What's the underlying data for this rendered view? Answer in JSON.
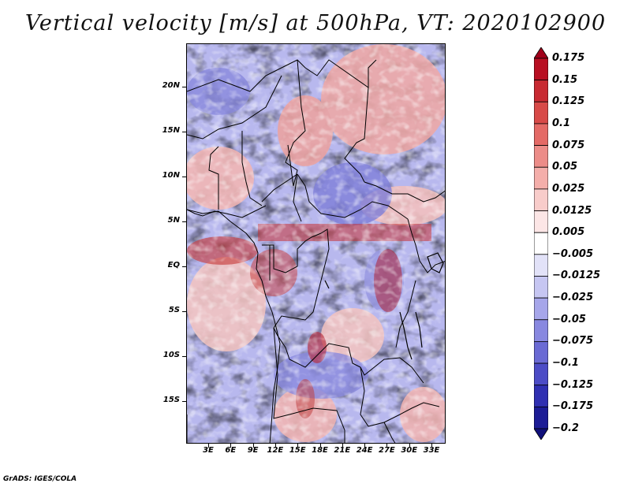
{
  "title": "Vertical velocity [m/s] at 500hPa, VT: 2020102900",
  "credit": "GrADS: IGES/COLA",
  "lat_labels": [
    "20N",
    "15N",
    "10N",
    "5N",
    "EQ",
    "5S",
    "10S",
    "15S"
  ],
  "lon_labels": [
    "3E",
    "6E",
    "9E",
    "12E",
    "15E",
    "18E",
    "21E",
    "24E",
    "27E",
    "30E",
    "33E"
  ],
  "colorbar": {
    "labels": [
      "0.175",
      "0.15",
      "0.125",
      "0.1",
      "0.075",
      "0.05",
      "0.025",
      "0.0125",
      "0.005",
      "−0.005",
      "−0.0125",
      "−0.025",
      "−0.05",
      "−0.075",
      "−0.1",
      "−0.125",
      "−0.175",
      "−0.2"
    ],
    "colors": [
      "#a0001a",
      "#b80f22",
      "#c82a32",
      "#d84a48",
      "#e46a66",
      "#ec8c88",
      "#f4aeaa",
      "#f8ccca",
      "#fce6e6",
      "#ffffff",
      "#e2e2f8",
      "#c6c6f2",
      "#a6a6ea",
      "#8888e0",
      "#6a6ad4",
      "#4c4cc6",
      "#3030b2",
      "#1c1c96",
      "#10107a"
    ]
  }
}
